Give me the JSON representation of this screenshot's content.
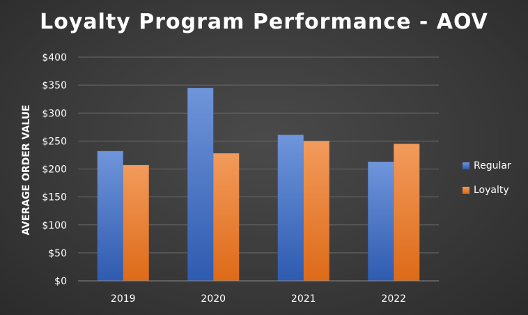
{
  "chart_data": {
    "type": "bar",
    "title": "Loyalty Program Performance - AOV",
    "ylabel": "AVERAGE ORDER VALUE",
    "xlabel": "",
    "categories": [
      "2019",
      "2020",
      "2021",
      "2022"
    ],
    "series": [
      {
        "name": "Regular",
        "values": [
          232,
          345,
          261,
          213
        ],
        "color": "#4472c4"
      },
      {
        "name": "Loyalty",
        "values": [
          207,
          228,
          250,
          245
        ],
        "color": "#ed7d31"
      }
    ],
    "ylim": [
      0,
      400
    ],
    "yticks": [
      0,
      50,
      100,
      150,
      200,
      250,
      300,
      350,
      400
    ],
    "ytick_labels": [
      "$0",
      "$50",
      "$100",
      "$150",
      "$200",
      "$250",
      "$300",
      "$350",
      "$400"
    ],
    "grid": true,
    "legend_position": "right"
  }
}
